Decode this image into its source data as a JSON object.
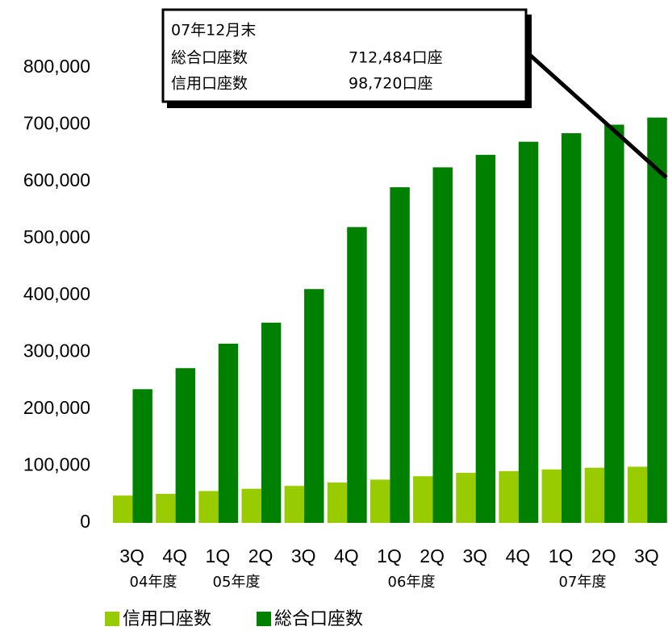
{
  "chart_data": {
    "type": "bar",
    "categories": [
      "3Q",
      "4Q",
      "1Q",
      "2Q",
      "3Q",
      "4Q",
      "1Q",
      "2Q",
      "3Q",
      "4Q",
      "1Q",
      "2Q",
      "3Q"
    ],
    "fiscal_years": [
      "04年度",
      "05年度",
      "06年度",
      "07年度"
    ],
    "series": [
      {
        "name": "信用口座数",
        "color": "#99cc00",
        "values": [
          48000,
          51000,
          56000,
          60000,
          65000,
          71000,
          76000,
          82000,
          88000,
          91000,
          94000,
          97000,
          98720
        ]
      },
      {
        "name": "総合口座数",
        "color": "#008000",
        "values": [
          235000,
          272000,
          315000,
          352000,
          411000,
          520000,
          590000,
          625000,
          647000,
          670000,
          685000,
          700000,
          712484
        ]
      }
    ],
    "ylim": [
      0,
      800000
    ],
    "yticks": [
      0,
      {
        "value": 100000,
        "label": "100,000"
      },
      {
        "value": 200000,
        "label": "200,000"
      },
      {
        "value": 300000,
        "label": "300,000"
      },
      {
        "value": 400000,
        "label": "400,000"
      },
      {
        "value": 500000,
        "label": "500,000"
      },
      {
        "value": 600000,
        "label": "600,000"
      },
      {
        "value": 700000,
        "label": "700,000"
      },
      {
        "value": 800000,
        "label": "800,000"
      }
    ],
    "annotation": {
      "title": "07年12月末",
      "rows": [
        [
          "総合口座数",
          "712,484口座"
        ],
        [
          "信用口座数",
          "98,720口座"
        ]
      ]
    },
    "legend": "bottom-left"
  }
}
